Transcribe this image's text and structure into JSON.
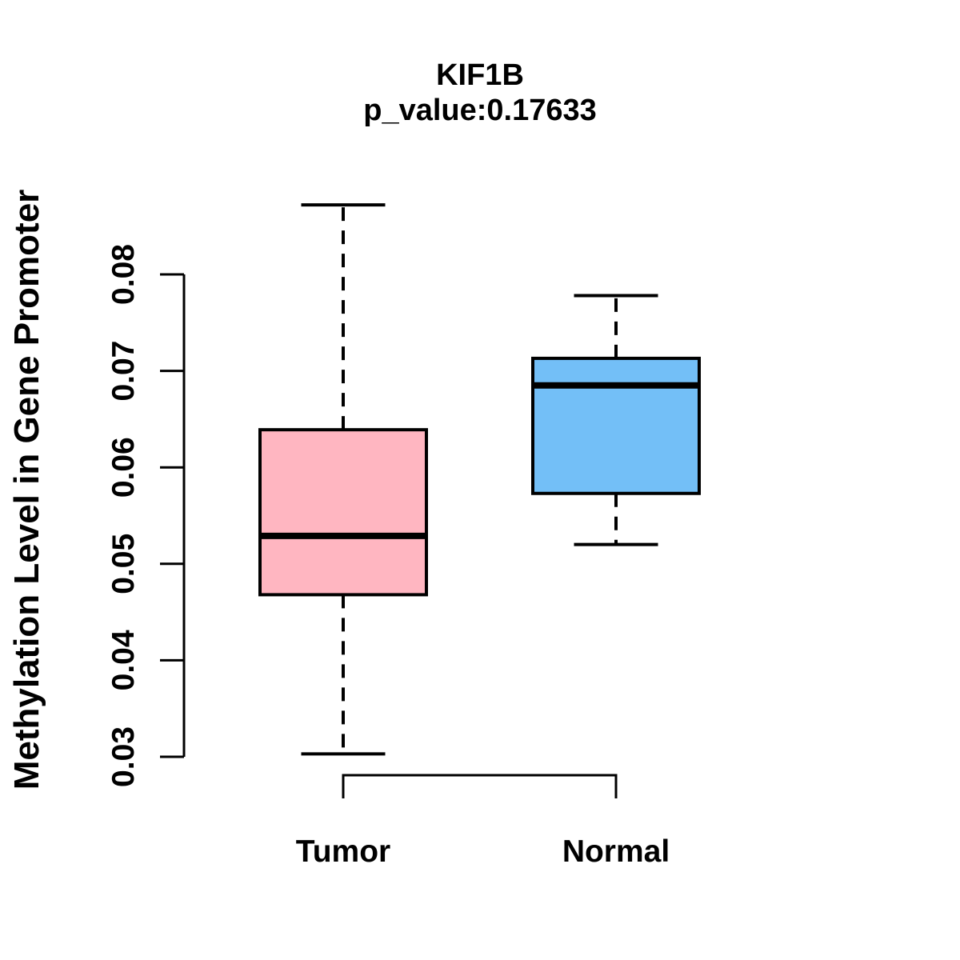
{
  "figure": {
    "background": "#ffffff",
    "stroke_color": "#000000"
  },
  "title": {
    "line1": "KIF1B",
    "line2": "p_value:0.17633"
  },
  "y_axis": {
    "label": "Methylation Level in Gene Promoter",
    "tick_labels": [
      "0.03",
      "0.04",
      "0.05",
      "0.06",
      "0.07",
      "0.08"
    ]
  },
  "x_axis": {
    "group_labels": [
      "Tumor",
      "Normal"
    ]
  },
  "chart_data": {
    "type": "boxplot",
    "title": "KIF1B",
    "subtitle": "p_value:0.17633",
    "p_value": 0.17633,
    "ylabel": "Methylation Level in Gene Promoter",
    "xlabel": "",
    "ylim": [
      0.03,
      0.08
    ],
    "yticks": [
      0.03,
      0.04,
      0.05,
      0.06,
      0.07,
      0.08
    ],
    "categories": [
      "Tumor",
      "Normal"
    ],
    "grid": false,
    "legend_position": "none",
    "series": [
      {
        "name": "Tumor",
        "box_color": "#FFB6C1",
        "whisker_low": 0.0303,
        "q1": 0.0468,
        "median": 0.0529,
        "q3": 0.0639,
        "whisker_high": 0.0872
      },
      {
        "name": "Normal",
        "box_color": "#73BFF7",
        "whisker_low": 0.052,
        "q1": 0.0573,
        "median": 0.0685,
        "q3": 0.0713,
        "whisker_high": 0.0778
      }
    ]
  }
}
